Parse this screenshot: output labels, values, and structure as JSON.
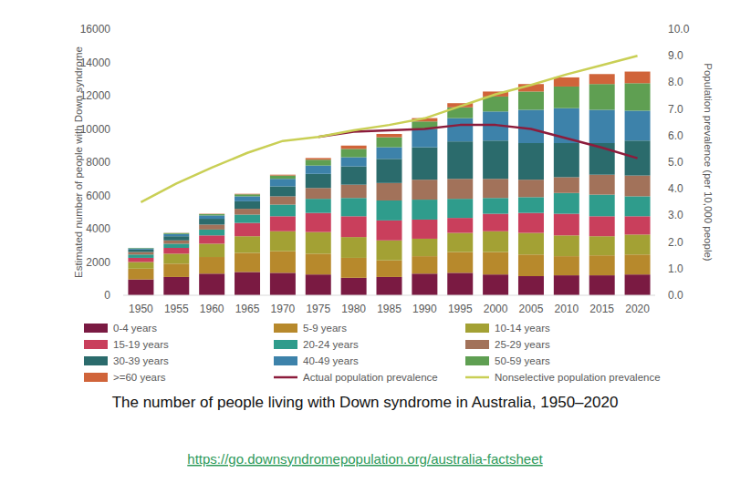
{
  "chart_data": {
    "type": "bar",
    "stacked": true,
    "grid": false,
    "title": "The number of people living with Down syndrome in Australia, 1950–2020",
    "source": "https://go.downsyndromepopulation.org/australia-factsheet",
    "ylabel": "Estimated number of people with Down syndrome",
    "y2label": "Population prevalence (per 10,000 people)",
    "categories": [
      "1950",
      "1955",
      "1960",
      "1965",
      "1970",
      "1975",
      "1980",
      "1985",
      "1990",
      "1995",
      "2000",
      "2005",
      "2010",
      "2015",
      "2020"
    ],
    "ylim": [
      0,
      16000
    ],
    "yticks": [
      0,
      2000,
      4000,
      6000,
      8000,
      10000,
      12000,
      14000,
      16000
    ],
    "y2lim": [
      0,
      10
    ],
    "y2ticks": [
      {
        "value": 0,
        "label": "0.0"
      },
      {
        "value": 1,
        "label": "1.0"
      },
      {
        "value": 2,
        "label": "2.0"
      },
      {
        "value": 3,
        "label": "3.0"
      },
      {
        "value": 4,
        "label": "4.0"
      },
      {
        "value": 5,
        "label": "5.0"
      },
      {
        "value": 6,
        "label": "6.0"
      },
      {
        "value": 7,
        "label": "7.0"
      },
      {
        "value": 8,
        "label": "8.0"
      },
      {
        "value": 9,
        "label": "9.0"
      },
      {
        "value": 10,
        "label": "10.0"
      }
    ],
    "series": [
      {
        "name": "0-4 years",
        "color": "#7a1a42",
        "values": [
          950,
          1100,
          1300,
          1400,
          1350,
          1250,
          1050,
          1100,
          1300,
          1350,
          1250,
          1150,
          1200,
          1200,
          1250
        ]
      },
      {
        "name": "5-9 years",
        "color": "#b7892c",
        "values": [
          650,
          800,
          1000,
          1150,
          1300,
          1250,
          1200,
          1000,
          1050,
          1250,
          1350,
          1300,
          1150,
          1200,
          1200
        ]
      },
      {
        "name": "10-14 years",
        "color": "#a3a134",
        "values": [
          400,
          600,
          800,
          1000,
          1200,
          1300,
          1250,
          1200,
          1050,
          1150,
          1250,
          1300,
          1250,
          1150,
          1200
        ]
      },
      {
        "name": "15-19 years",
        "color": "#c93f5c",
        "values": [
          250,
          350,
          500,
          800,
          900,
          1150,
          1250,
          1200,
          1150,
          900,
          1050,
          1200,
          1300,
          1200,
          1100
        ]
      },
      {
        "name": "20-24 years",
        "color": "#2f9c8c",
        "values": [
          200,
          250,
          350,
          500,
          700,
          850,
          1100,
          1200,
          1200,
          1150,
          950,
          950,
          1250,
          1300,
          1200
        ]
      },
      {
        "name": "25-29 years",
        "color": "#a2725a",
        "values": [
          150,
          200,
          300,
          350,
          500,
          650,
          800,
          1050,
          1200,
          1200,
          1150,
          1050,
          950,
          1200,
          1250
        ]
      },
      {
        "name": "30-39 years",
        "color": "#2b6b6c",
        "values": [
          150,
          250,
          350,
          450,
          600,
          850,
          1100,
          1450,
          1950,
          2250,
          2300,
          2200,
          2050,
          1900,
          2100
        ]
      },
      {
        "name": "40-49 years",
        "color": "#3d82aa",
        "values": [
          70,
          130,
          200,
          300,
          450,
          500,
          550,
          700,
          1100,
          1400,
          1750,
          2000,
          2100,
          2000,
          1800
        ]
      },
      {
        "name": "50-59 years",
        "color": "#5f9f52",
        "values": [
          30,
          60,
          80,
          120,
          200,
          350,
          500,
          600,
          450,
          650,
          900,
          1100,
          1300,
          1550,
          1650
        ]
      },
      {
        "name": ">=60 years",
        "color": "#d0643a",
        "values": [
          0,
          10,
          20,
          30,
          50,
          100,
          200,
          200,
          200,
          250,
          300,
          450,
          550,
          600,
          700
        ]
      },
      {
        "name": "Actual population prevalence",
        "color": "#8c1c3c",
        "type": "line",
        "axis": "y2",
        "values": [
          null,
          null,
          null,
          null,
          null,
          5.95,
          6.15,
          6.2,
          6.25,
          6.4,
          6.4,
          6.25,
          5.9,
          5.55,
          5.15
        ]
      },
      {
        "name": "Nonselective population prevalence",
        "color": "#c9cf55",
        "type": "line",
        "axis": "y2",
        "values": [
          3.5,
          4.2,
          4.8,
          5.35,
          5.8,
          5.95,
          6.2,
          6.4,
          6.65,
          7.1,
          7.55,
          7.9,
          8.3,
          8.65,
          9.0
        ]
      }
    ]
  }
}
